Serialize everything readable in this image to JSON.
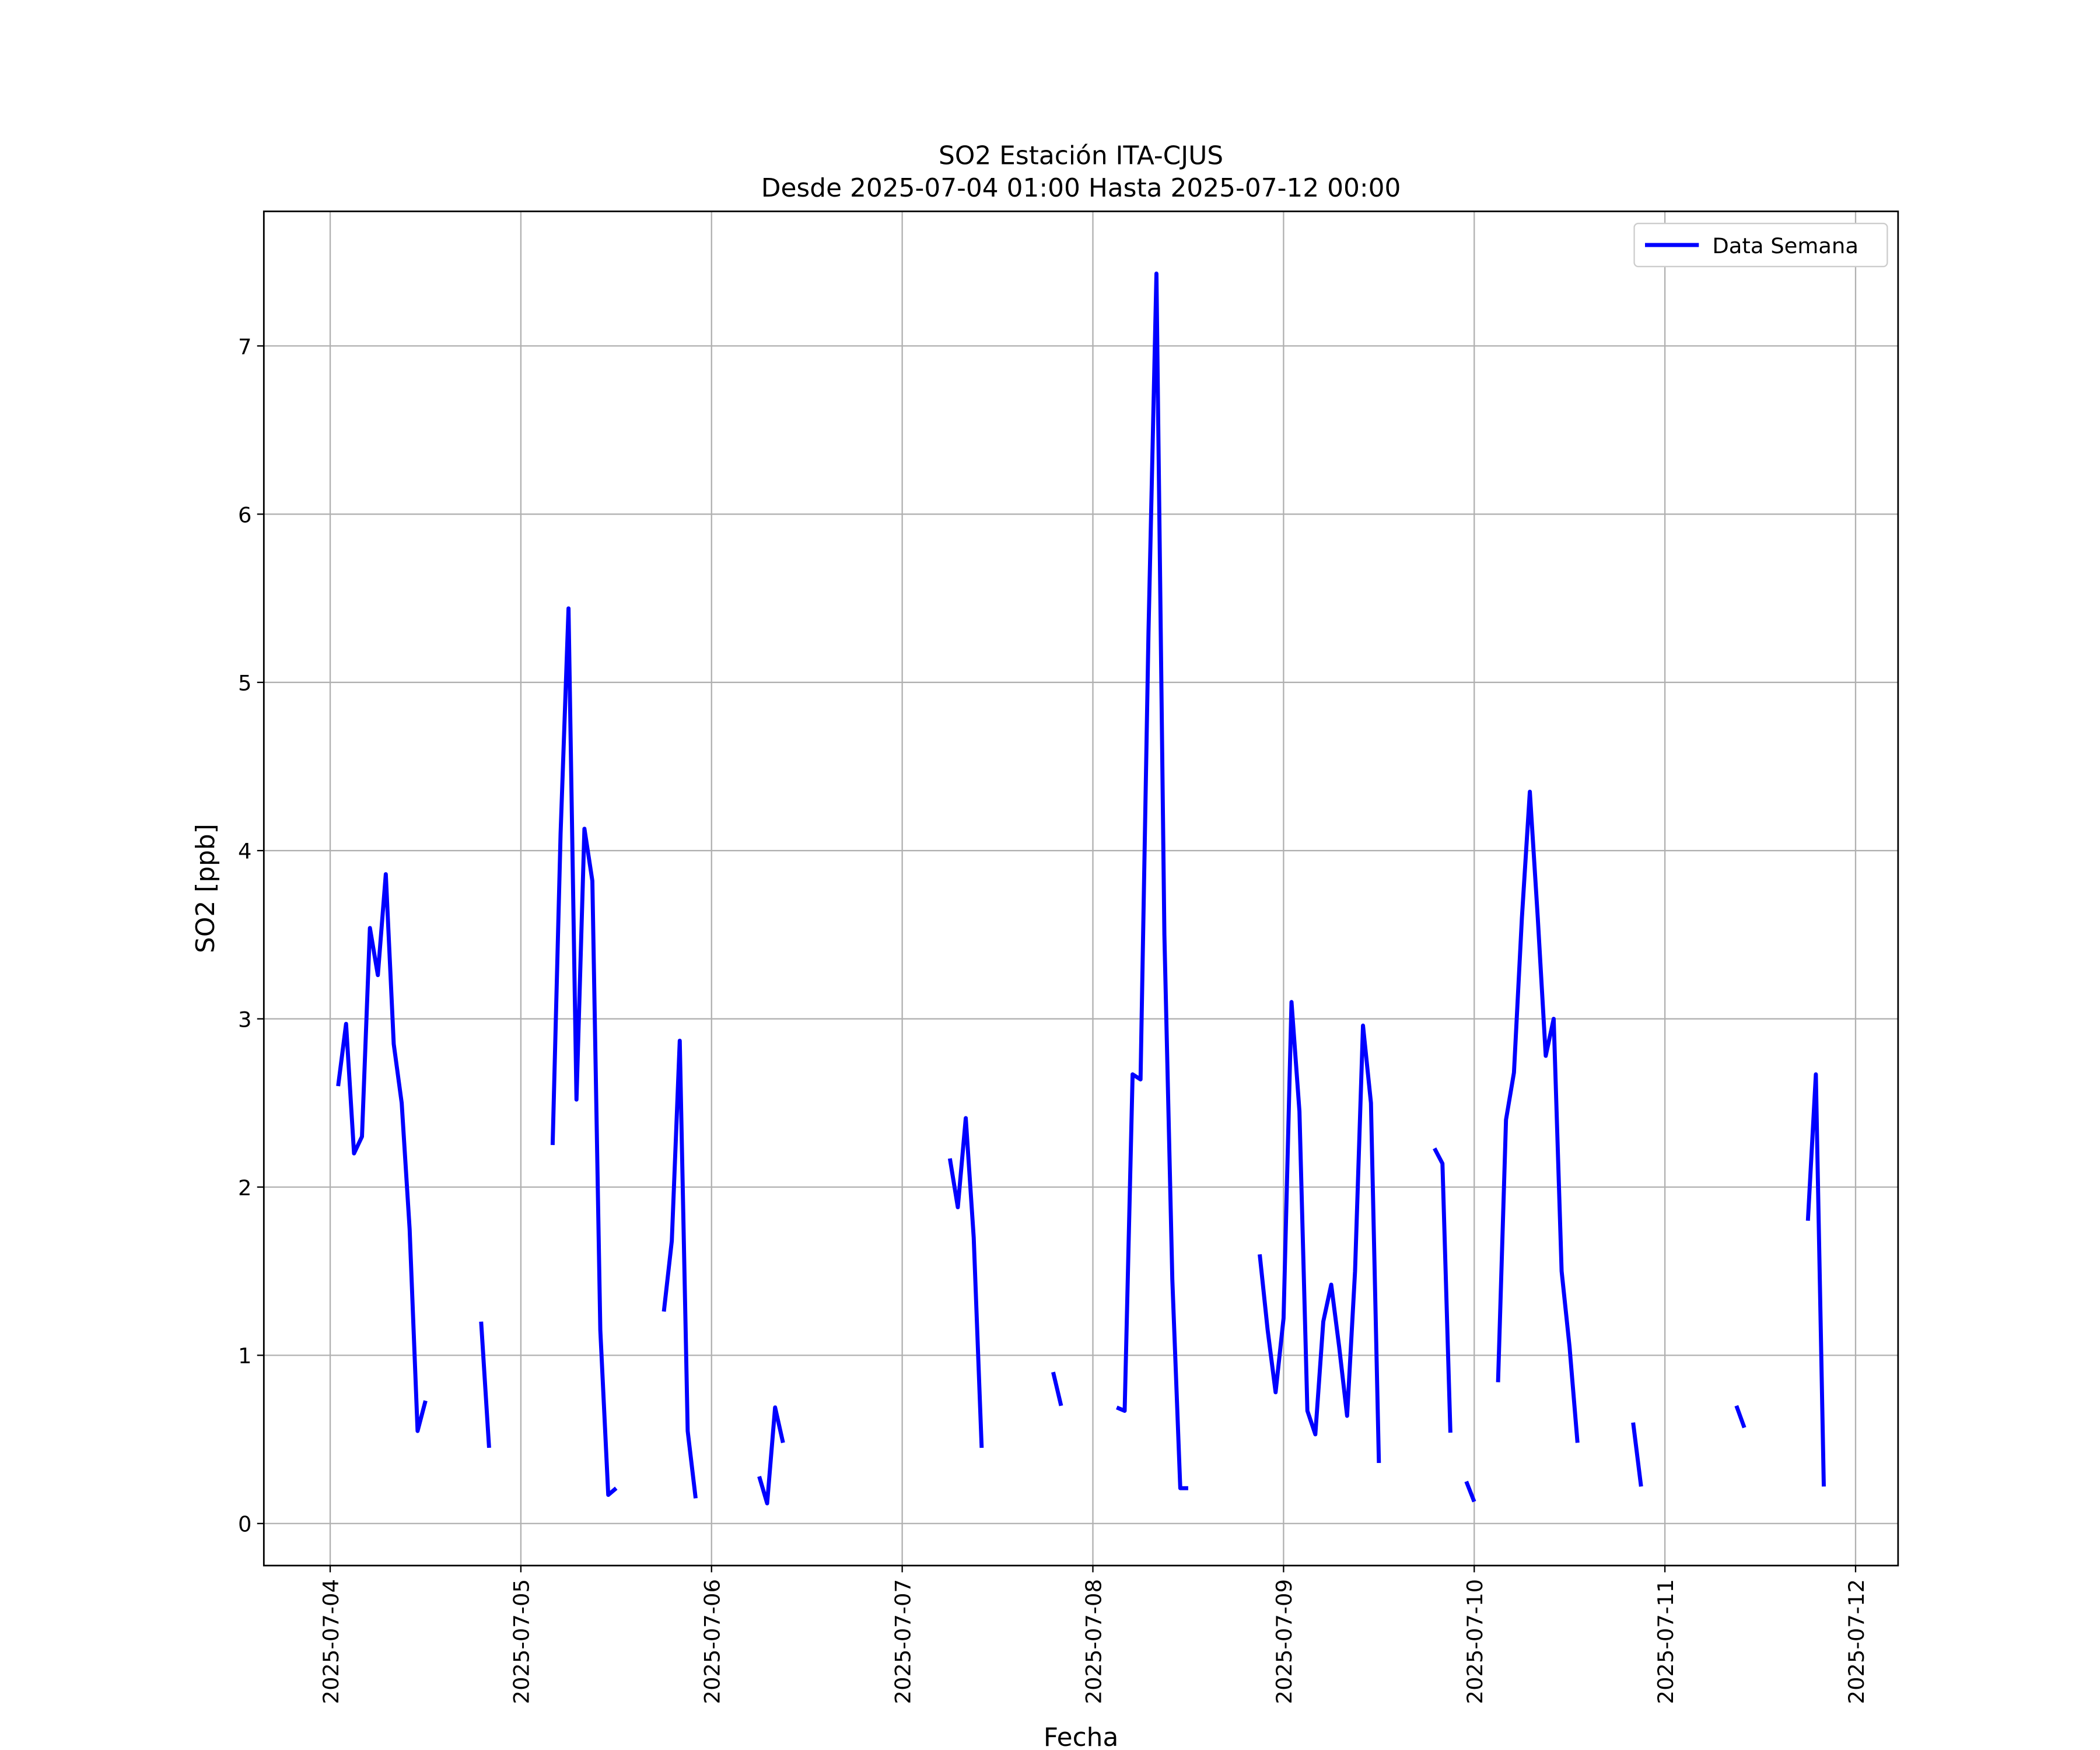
{
  "chart_data": {
    "type": "line",
    "title": "SO2 Estación ITA-CJUS",
    "subtitle": "Desde 2025-07-04 01:00 Hasta 2025-07-12 00:00",
    "xlabel": "Fecha",
    "ylabel": "SO2 [ppb]",
    "x": [
      "2025-07-04 01:00",
      "2025-07-04 02:00",
      "2025-07-04 03:00",
      "2025-07-04 04:00",
      "2025-07-04 05:00",
      "2025-07-04 06:00",
      "2025-07-04 07:00",
      "2025-07-04 08:00",
      "2025-07-04 09:00",
      "2025-07-04 10:00",
      "2025-07-04 11:00",
      "2025-07-04 12:00",
      "2025-07-04 13:00",
      "2025-07-04 19:00",
      "2025-07-04 20:00",
      "2025-07-04 21:00",
      "2025-07-05 04:00",
      "2025-07-05 05:00",
      "2025-07-05 06:00",
      "2025-07-05 07:00",
      "2025-07-05 08:00",
      "2025-07-05 09:00",
      "2025-07-05 10:00",
      "2025-07-05 11:00",
      "2025-07-05 12:00",
      "2025-07-05 13:00",
      "2025-07-05 18:00",
      "2025-07-05 19:00",
      "2025-07-05 20:00",
      "2025-07-05 21:00",
      "2025-07-05 22:00",
      "2025-07-05 23:00",
      "2025-07-06 06:00",
      "2025-07-06 07:00",
      "2025-07-06 08:00",
      "2025-07-06 09:00",
      "2025-07-06 10:00",
      "2025-07-07 06:00",
      "2025-07-07 07:00",
      "2025-07-07 08:00",
      "2025-07-07 09:00",
      "2025-07-07 10:00",
      "2025-07-07 11:00",
      "2025-07-07 19:00",
      "2025-07-07 20:00",
      "2025-07-07 21:00",
      "2025-07-08 03:00",
      "2025-07-08 04:00",
      "2025-07-08 05:00",
      "2025-07-08 06:00",
      "2025-07-08 07:00",
      "2025-07-08 08:00",
      "2025-07-08 09:00",
      "2025-07-08 10:00",
      "2025-07-08 11:00",
      "2025-07-08 12:00",
      "2025-07-08 13:00",
      "2025-07-08 21:00",
      "2025-07-08 22:00",
      "2025-07-08 23:00",
      "2025-07-09 00:00",
      "2025-07-09 01:00",
      "2025-07-09 02:00",
      "2025-07-09 03:00",
      "2025-07-09 04:00",
      "2025-07-09 05:00",
      "2025-07-09 06:00",
      "2025-07-09 07:00",
      "2025-07-09 08:00",
      "2025-07-09 09:00",
      "2025-07-09 10:00",
      "2025-07-09 11:00",
      "2025-07-09 12:00",
      "2025-07-09 13:00",
      "2025-07-09 19:00",
      "2025-07-09 20:00",
      "2025-07-09 21:00",
      "2025-07-09 22:00",
      "2025-07-09 23:00",
      "2025-07-10 00:00",
      "2025-07-10 01:00",
      "2025-07-10 03:00",
      "2025-07-10 04:00",
      "2025-07-10 05:00",
      "2025-07-10 06:00",
      "2025-07-10 07:00",
      "2025-07-10 08:00",
      "2025-07-10 09:00",
      "2025-07-10 10:00",
      "2025-07-10 11:00",
      "2025-07-10 12:00",
      "2025-07-10 13:00",
      "2025-07-10 14:00",
      "2025-07-10 20:00",
      "2025-07-10 21:00",
      "2025-07-10 22:00",
      "2025-07-11 09:00",
      "2025-07-11 10:00",
      "2025-07-11 11:00",
      "2025-07-11 18:00",
      "2025-07-11 19:00",
      "2025-07-11 20:00"
    ],
    "series": [
      {
        "name": "Data Semana",
        "color": "#0000ff",
        "values": [
          2.6,
          2.97,
          2.2,
          2.3,
          3.54,
          3.26,
          3.86,
          2.85,
          2.5,
          1.75,
          0.55,
          0.73,
          null,
          1.2,
          0.45,
          null,
          2.25,
          4.1,
          5.44,
          2.52,
          4.13,
          3.82,
          1.15,
          0.17,
          0.21,
          null,
          1.26,
          1.68,
          2.87,
          0.55,
          0.15,
          null,
          0.28,
          0.12,
          0.69,
          0.48,
          null,
          2.17,
          1.88,
          2.41,
          1.7,
          0.45,
          null,
          0.9,
          0.7,
          null,
          0.69,
          0.67,
          2.67,
          2.64,
          5.3,
          7.43,
          3.5,
          1.45,
          0.21,
          0.21,
          null,
          1.6,
          1.15,
          0.78,
          1.22,
          3.1,
          2.45,
          0.67,
          0.53,
          1.2,
          1.42,
          1.05,
          0.64,
          1.5,
          2.96,
          2.5,
          0.36,
          null,
          2.23,
          2.14,
          0.54,
          null,
          0.25,
          0.13,
          null,
          0.84,
          2.4,
          2.68,
          3.6,
          4.35,
          3.6,
          2.78,
          3.0,
          1.5,
          1.05,
          0.48,
          null,
          0.6,
          0.22,
          null,
          0.7,
          0.57,
          null,
          1.8,
          2.67,
          0.22
        ]
      }
    ],
    "xlim": [
      "2025-07-03 15:39",
      "2025-07-12 05:21"
    ],
    "xticks": [
      "2025-07-04",
      "2025-07-05",
      "2025-07-06",
      "2025-07-07",
      "2025-07-08",
      "2025-07-09",
      "2025-07-10",
      "2025-07-11",
      "2025-07-12"
    ],
    "ylim": [
      -0.25,
      7.8
    ],
    "yticks": [
      0,
      1,
      2,
      3,
      4,
      5,
      6,
      7
    ],
    "grid": true,
    "legend": "upper right"
  }
}
